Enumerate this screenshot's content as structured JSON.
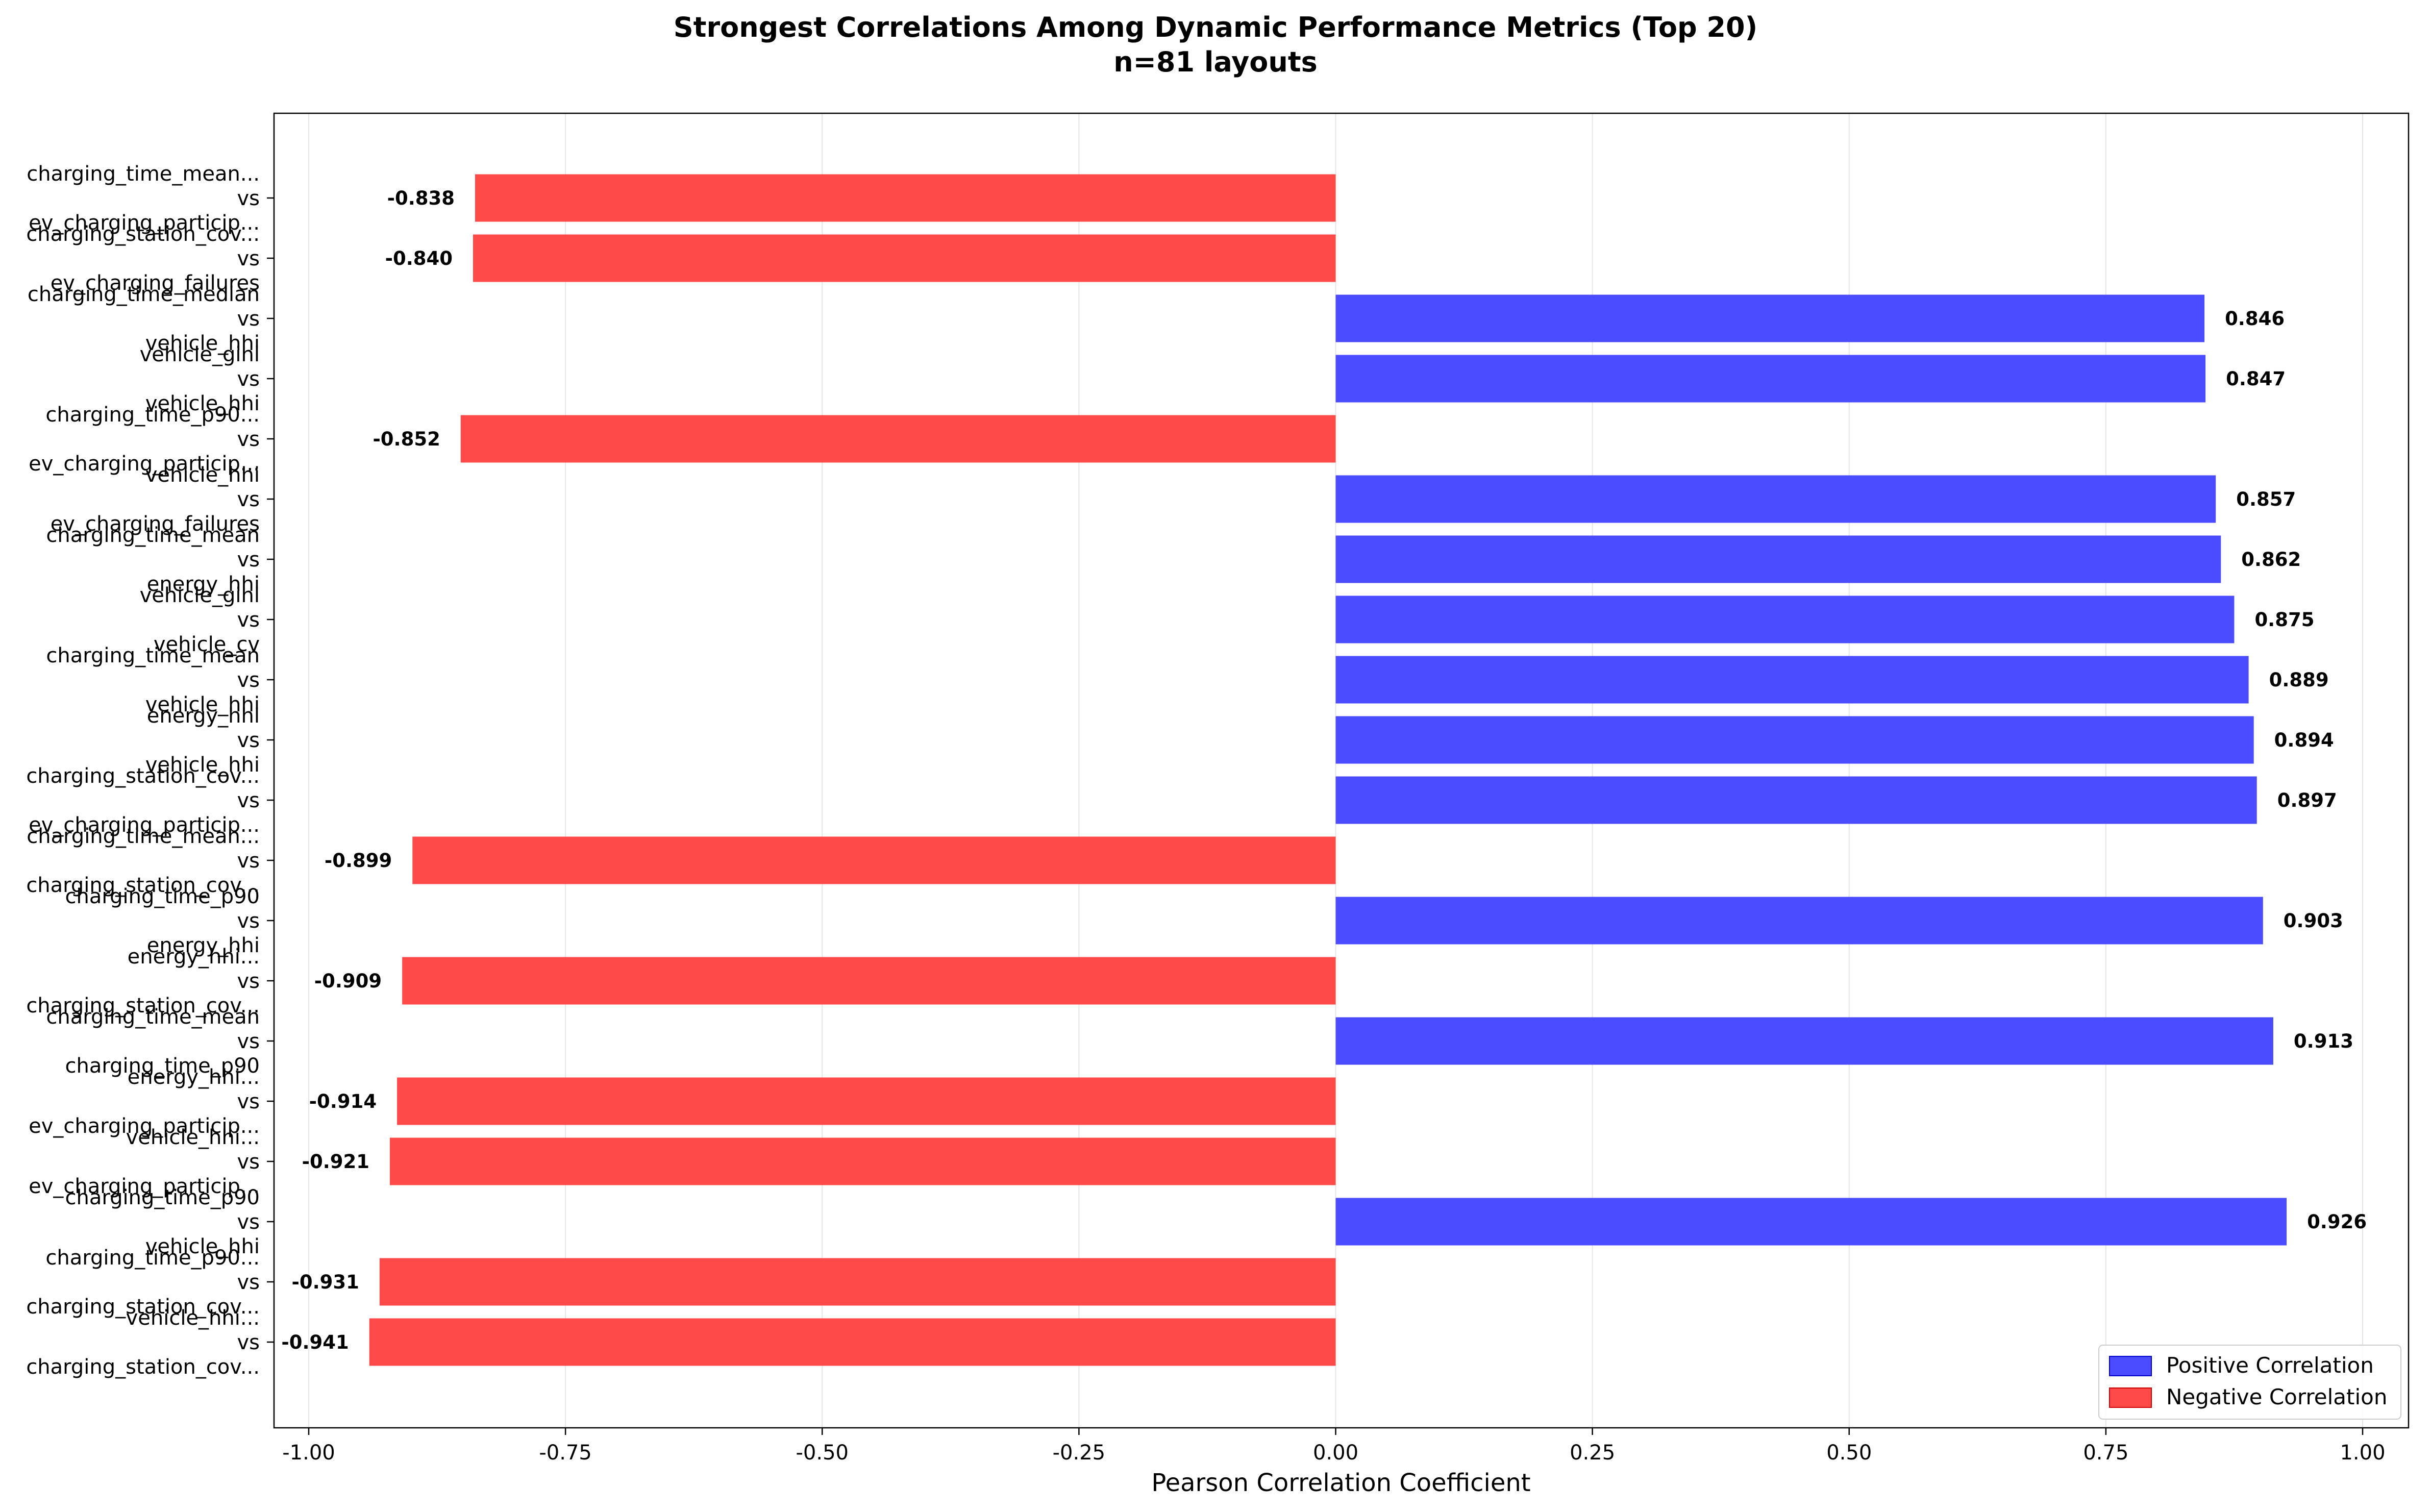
{
  "chart_data": {
    "type": "bar",
    "orientation": "horizontal",
    "title": "Strongest Correlations Among Dynamic Performance Metrics (Top 20)",
    "subtitle": "n=81 layouts",
    "xlabel": "Pearson Correlation Coefficient",
    "ylabel": "",
    "xlim": [
      -1.0,
      1.0
    ],
    "xticks": [
      "-1.00",
      "-0.75",
      "-0.50",
      "-0.25",
      "0.00",
      "0.25",
      "0.50",
      "0.75",
      "1.00"
    ],
    "grid": "x",
    "legend": {
      "position": "bottom-right",
      "entries": [
        "Positive Correlation",
        "Negative Correlation"
      ]
    },
    "colors": {
      "positive": "#4b4bff",
      "negative": "#ff4a4a"
    },
    "categories": [
      "charging_time_mean...\nvs\nev_charging_particip...",
      "charging_station_cov...\nvs\nev_charging_failures",
      "charging_time_median\nvs\nvehicle_hhi",
      "vehicle_gini\nvs\nvehicle_hhi",
      "charging_time_p90...\nvs\nev_charging_particip...",
      "vehicle_hhi\nvs\nev_charging_failures",
      "charging_time_mean\nvs\nenergy_hhi",
      "vehicle_gini\nvs\nvehicle_cv",
      "charging_time_mean\nvs\nvehicle_hhi",
      "energy_hhi\nvs\nvehicle_hhi",
      "charging_station_cov...\nvs\nev_charging_particip...",
      "charging_time_mean...\nvs\ncharging_station_cov...",
      "charging_time_p90\nvs\nenergy_hhi",
      "energy_hhi...\nvs\ncharging_station_cov...",
      "charging_time_mean\nvs\ncharging_time_p90",
      "energy_hhi...\nvs\nev_charging_particip...",
      "vehicle_hhi...\nvs\nev_charging_particip...",
      "charging_time_p90\nvs\nvehicle_hhi",
      "charging_time_p90...\nvs\ncharging_station_cov...",
      "vehicle_hhi...\nvs\ncharging_station_cov..."
    ],
    "values": [
      -0.838,
      -0.84,
      0.846,
      0.847,
      -0.852,
      0.857,
      0.862,
      0.875,
      0.889,
      0.894,
      0.897,
      -0.899,
      0.903,
      -0.909,
      0.913,
      -0.914,
      -0.921,
      0.926,
      -0.931,
      -0.941
    ],
    "value_labels": [
      "-0.838",
      "-0.840",
      "0.846",
      "0.847",
      "-0.852",
      "0.857",
      "0.862",
      "0.875",
      "0.889",
      "0.894",
      "0.897",
      "-0.899",
      "0.903",
      "-0.909",
      "0.913",
      "-0.914",
      "-0.921",
      "0.926",
      "-0.931",
      "-0.941"
    ]
  }
}
